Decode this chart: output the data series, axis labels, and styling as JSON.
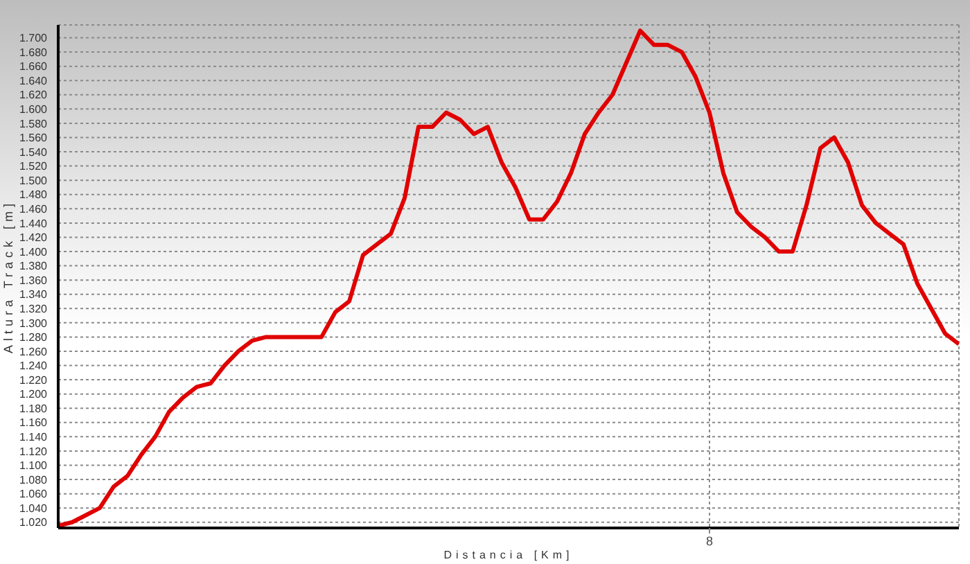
{
  "chart_data": {
    "type": "line",
    "xlabel": "Distancia [Km]",
    "ylabel": "Altura Track [m]",
    "categories": [
      null,
      null,
      null,
      null,
      null,
      null,
      null,
      null,
      null,
      null,
      null,
      null,
      null,
      null,
      null,
      null,
      null,
      null,
      null,
      null,
      null,
      null,
      null,
      null,
      null,
      null,
      null,
      null,
      null,
      null,
      null,
      null,
      null,
      null,
      null,
      null,
      null,
      null,
      null,
      null,
      null,
      null,
      null,
      null,
      null,
      null,
      null,
      "8",
      null,
      null,
      null,
      null,
      null,
      null,
      null,
      null,
      null,
      null,
      null,
      null,
      null,
      null,
      null,
      null,
      null,
      null
    ],
    "series": [
      {
        "color": "#e00000",
        "values": [
          1015,
          1020,
          1030,
          1040,
          1070,
          1085,
          1115,
          1140,
          1175,
          1195,
          1210,
          1215,
          1240,
          1260,
          1275,
          1280,
          1280,
          1280,
          1280,
          1280,
          1315,
          1330,
          1395,
          1410,
          1425,
          1475,
          1575,
          1575,
          1595,
          1585,
          1565,
          1575,
          1525,
          1490,
          1445,
          1445,
          1470,
          1510,
          1565,
          1595,
          1620,
          1665,
          1710,
          1690,
          1690,
          1680,
          1645,
          1595,
          1510,
          1455,
          1435,
          1420,
          1400,
          1400,
          1465,
          1545,
          1560,
          1525,
          1465,
          1440,
          1425,
          1410,
          1355,
          1320,
          1285,
          1270
        ]
      }
    ],
    "ylim": [
      1012,
      1718
    ],
    "yticks": [
      {
        "value": 1020,
        "label": "1.020"
      },
      {
        "value": 1040,
        "label": "1.040"
      },
      {
        "value": 1060,
        "label": "1.060"
      },
      {
        "value": 1080,
        "label": "1.080"
      },
      {
        "value": 1100,
        "label": "1.100"
      },
      {
        "value": 1120,
        "label": "1.120"
      },
      {
        "value": 1140,
        "label": "1.140"
      },
      {
        "value": 1160,
        "label": "1.160"
      },
      {
        "value": 1180,
        "label": "1.180"
      },
      {
        "value": 1200,
        "label": "1.200"
      },
      {
        "value": 1220,
        "label": "1.220"
      },
      {
        "value": 1240,
        "label": "1.240"
      },
      {
        "value": 1260,
        "label": "1.260"
      },
      {
        "value": 1280,
        "label": "1.280"
      },
      {
        "value": 1300,
        "label": "1.300"
      },
      {
        "value": 1320,
        "label": "1.320"
      },
      {
        "value": 1340,
        "label": "1.340"
      },
      {
        "value": 1360,
        "label": "1.360"
      },
      {
        "value": 1380,
        "label": "1.380"
      },
      {
        "value": 1400,
        "label": "1.400"
      },
      {
        "value": 1420,
        "label": "1.420"
      },
      {
        "value": 1440,
        "label": "1.440"
      },
      {
        "value": 1460,
        "label": "1.460"
      },
      {
        "value": 1480,
        "label": "1.480"
      },
      {
        "value": 1500,
        "label": "1.500"
      },
      {
        "value": 1520,
        "label": "1.520"
      },
      {
        "value": 1540,
        "label": "1.540"
      },
      {
        "value": 1560,
        "label": "1.560"
      },
      {
        "value": 1580,
        "label": "1.580"
      },
      {
        "value": 1600,
        "label": "1.600"
      },
      {
        "value": 1620,
        "label": "1.620"
      },
      {
        "value": 1640,
        "label": "1.640"
      },
      {
        "value": 1660,
        "label": "1.660"
      },
      {
        "value": 1680,
        "label": "1.680"
      },
      {
        "value": 1700,
        "label": "1.700"
      }
    ],
    "grid": true,
    "legend": false
  }
}
